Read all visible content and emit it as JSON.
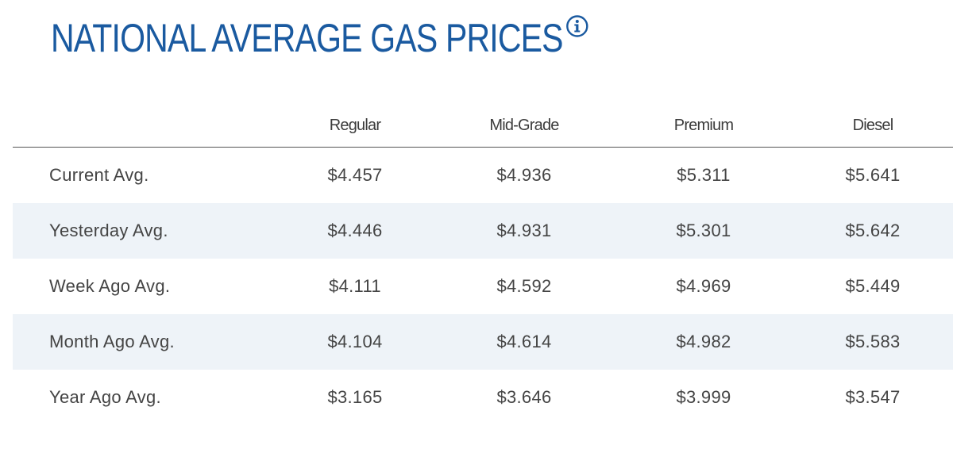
{
  "header": {
    "title": "NATIONAL AVERAGE GAS PRICES",
    "info_icon": "info-circle-icon",
    "accent_color": "#1a5aa0"
  },
  "table": {
    "columns": [
      "Regular",
      "Mid-Grade",
      "Premium",
      "Diesel"
    ],
    "rows": [
      {
        "label": "Current Avg.",
        "values": [
          "$4.457",
          "$4.936",
          "$5.311",
          "$5.641"
        ]
      },
      {
        "label": "Yesterday Avg.",
        "values": [
          "$4.446",
          "$4.931",
          "$5.301",
          "$5.642"
        ]
      },
      {
        "label": "Week Ago Avg.",
        "values": [
          "$4.111",
          "$4.592",
          "$4.969",
          "$5.449"
        ]
      },
      {
        "label": "Month Ago Avg.",
        "values": [
          "$4.104",
          "$4.614",
          "$4.982",
          "$5.583"
        ]
      },
      {
        "label": "Year Ago Avg.",
        "values": [
          "$3.165",
          "$3.646",
          "$3.999",
          "$3.547"
        ]
      }
    ],
    "stripe_color": "#eef3f8"
  }
}
